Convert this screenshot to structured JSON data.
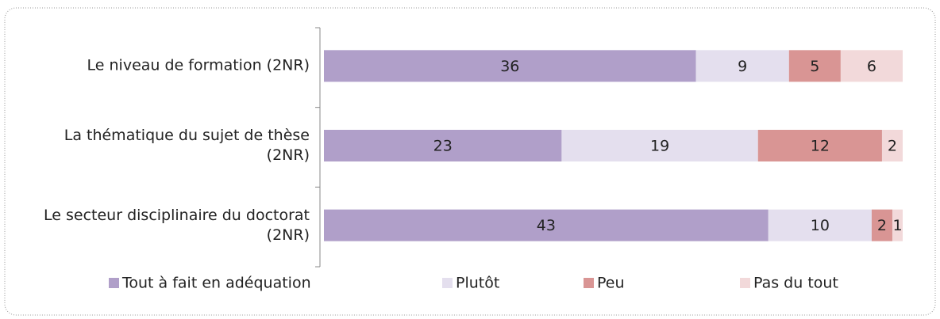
{
  "chart_data": {
    "type": "stacked-bar-horizontal",
    "categories": [
      "Le niveau de formation (2NR)",
      "La thématique du sujet de thèse (2NR)",
      "Le secteur disciplinaire du doctorat  (2NR)"
    ],
    "series": [
      {
        "name": "Tout à fait en adéquation",
        "color": "#b09fc9",
        "values": [
          36,
          23,
          43
        ]
      },
      {
        "name": "Plutôt",
        "color": "#e4dfee",
        "values": [
          9,
          19,
          10
        ]
      },
      {
        "name": "Peu",
        "color": "#d99594",
        "values": [
          5,
          12,
          2
        ]
      },
      {
        "name": "Pas du tout",
        "color": "#f2d9da",
        "values": [
          6,
          2,
          1
        ]
      }
    ],
    "xlim": [
      0,
      56
    ]
  }
}
